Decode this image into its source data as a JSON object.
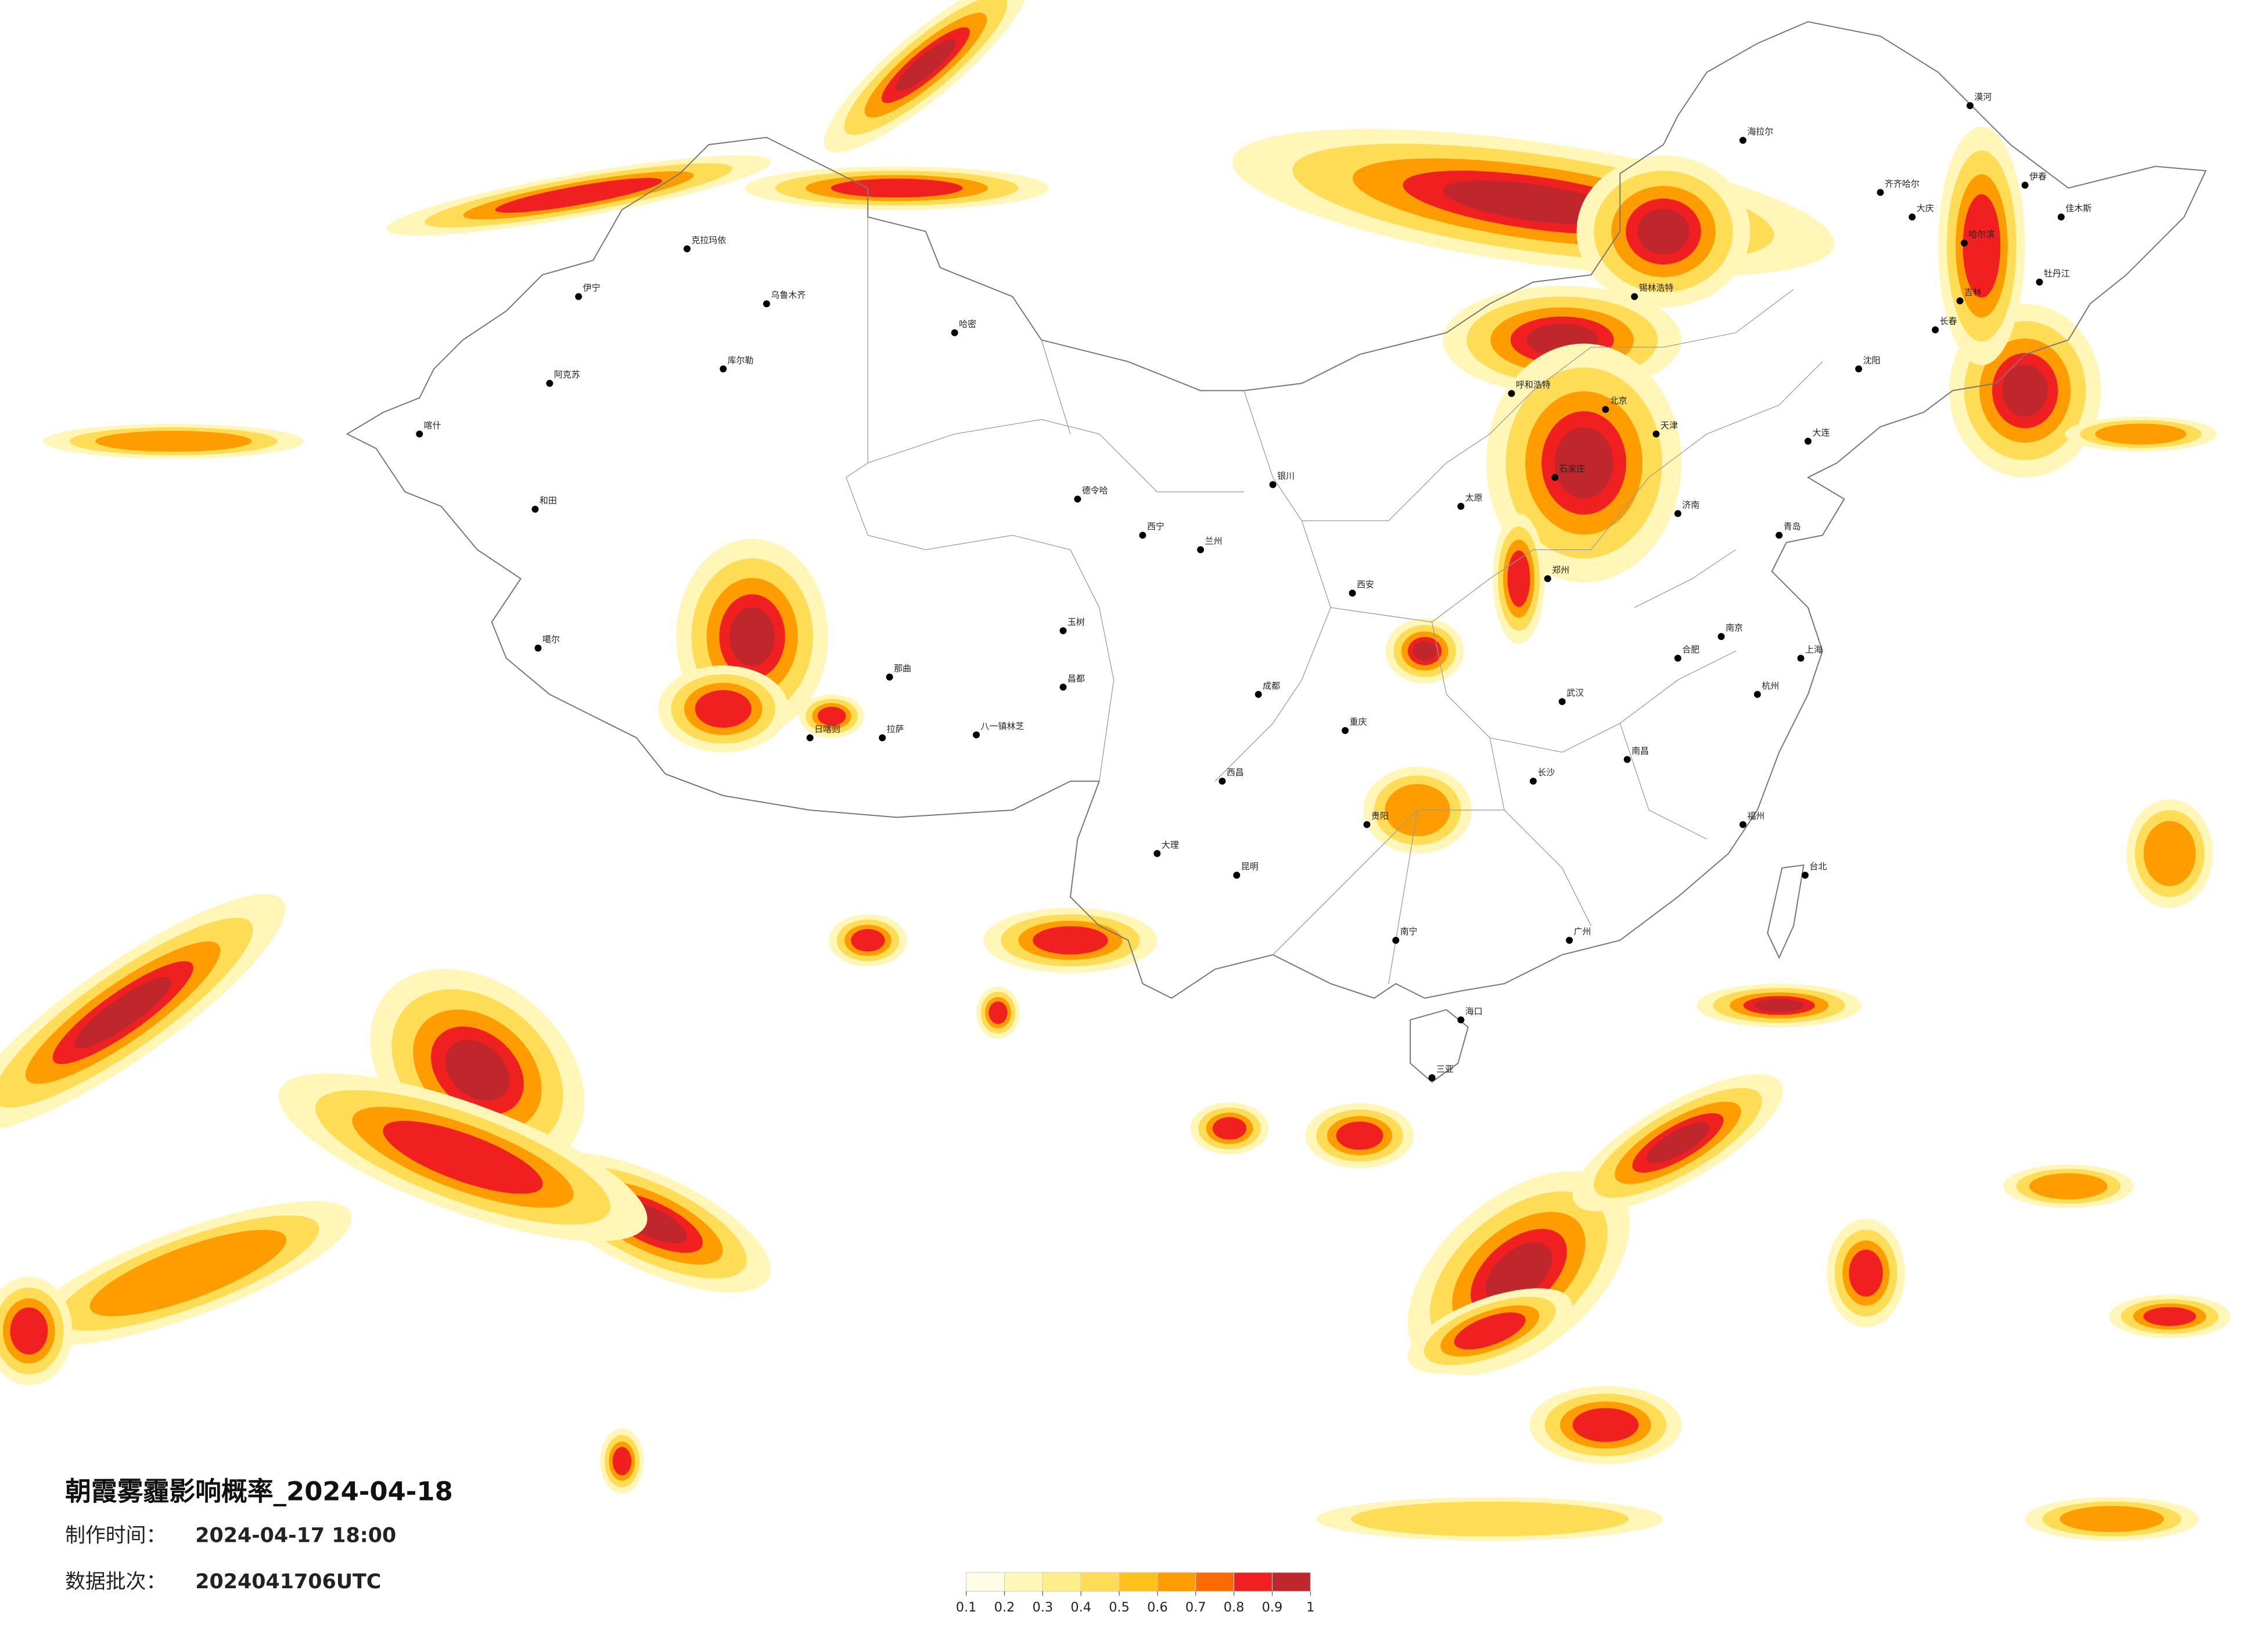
{
  "title": "朝霞雾霾影响概率_2024-04-18",
  "info": [
    {
      "label": "制作时间：",
      "value": "2024-04-17 18:00"
    },
    {
      "label": "数据批次：",
      "value": "2024041706UTC"
    }
  ],
  "colorbar": {
    "ticks": [
      0.1,
      0.2,
      0.3,
      0.4,
      0.5,
      0.6,
      0.7,
      0.8,
      0.9,
      1
    ],
    "colors": [
      "#fffde6",
      "#fff6b8",
      "#ffee8a",
      "#ffdc55",
      "#ffc21a",
      "#ff9c00",
      "#ff6a00",
      "#f02020",
      "#c0272d"
    ]
  },
  "cities": [
    "漠河",
    "海拉尔",
    "齐齐哈尔",
    "大庆",
    "哈尔滨",
    "伊春",
    "佳木斯",
    "牡丹江",
    "长春",
    "吉林",
    "沈阳",
    "大连",
    "锡林浩特",
    "呼和浩特",
    "北京",
    "天津",
    "石家庄",
    "太原",
    "济南",
    "青岛",
    "郑州",
    "西安",
    "兰州",
    "西宁",
    "银川",
    "南京",
    "上海",
    "杭州",
    "合肥",
    "武汉",
    "长沙",
    "南昌",
    "福州",
    "台北",
    "广州",
    "南宁",
    "海口",
    "三亚",
    "昆明",
    "贵阳",
    "成都",
    "重庆",
    "拉萨",
    "日喀则",
    "德令哈",
    "乌鲁木齐",
    "哈密",
    "喀什",
    "和田",
    "伊宁",
    "阿克苏",
    "库尔勒",
    "克拉玛依",
    "噶尔",
    "那曲",
    "八一镇林芝",
    "昌都",
    "玉树",
    "西昌",
    "大理"
  ]
}
